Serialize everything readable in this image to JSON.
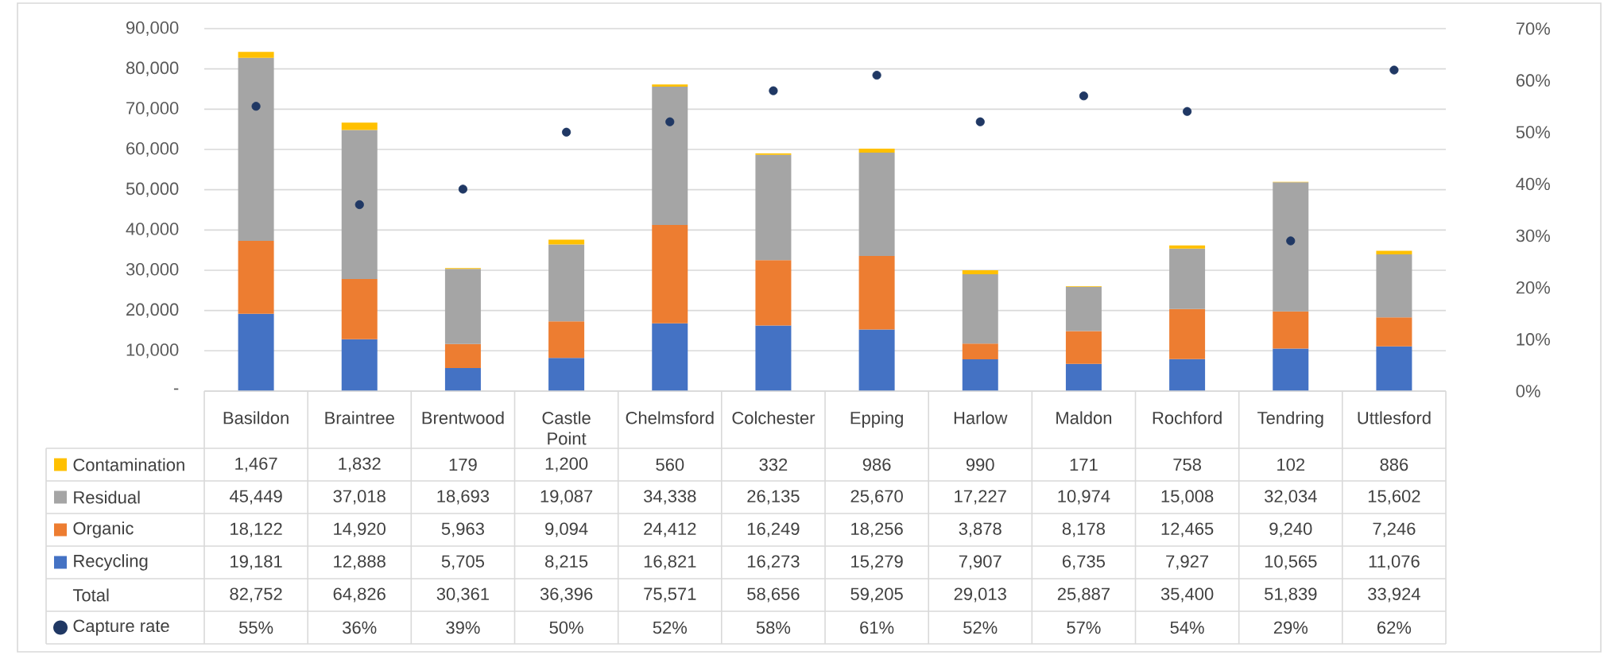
{
  "chart_data": {
    "type": "bar",
    "stacked": true,
    "grid": "y",
    "legend": "bottom",
    "categories": [
      "Basildon",
      "Braintree",
      "Brentwood",
      "Castle Point",
      "Chelmsford",
      "Colchester",
      "Epping",
      "Harlow",
      "Maldon",
      "Rochford",
      "Tendring",
      "Uttlesford"
    ],
    "series": [
      {
        "name": "Recycling",
        "color": "#4472c4",
        "values": [
          19181,
          12888,
          5705,
          8215,
          16821,
          16273,
          15279,
          7907,
          6735,
          7927,
          10565,
          11076
        ],
        "value_labels": [
          "19,181",
          "12,888",
          "5,705",
          "8,215",
          "16,821",
          "16,273",
          "15,279",
          "7,907",
          "6,735",
          "7,927",
          "10,565",
          "11,076"
        ]
      },
      {
        "name": "Organic",
        "color": "#ed7d31",
        "values": [
          18122,
          14920,
          5963,
          9094,
          24412,
          16249,
          18256,
          3878,
          8178,
          12465,
          9240,
          7246
        ],
        "value_labels": [
          "18,122",
          "14,920",
          "5,963",
          "9,094",
          "24,412",
          "16,249",
          "18,256",
          "3,878",
          "8,178",
          "12,465",
          "9,240",
          "7,246"
        ]
      },
      {
        "name": "Residual",
        "color": "#a5a5a5",
        "values": [
          45449,
          37018,
          18693,
          19087,
          34338,
          26135,
          25670,
          17227,
          10974,
          15008,
          32034,
          15602
        ],
        "value_labels": [
          "45,449",
          "37,018",
          "18,693",
          "19,087",
          "34,338",
          "26,135",
          "25,670",
          "17,227",
          "10,974",
          "15,008",
          "32,034",
          "15,602"
        ]
      },
      {
        "name": "Contamination",
        "color": "#ffc000",
        "values": [
          1467,
          1832,
          179,
          1200,
          560,
          332,
          986,
          990,
          171,
          758,
          102,
          886
        ],
        "value_labels": [
          "1,467",
          "1,832",
          "179",
          "1,200",
          "560",
          "332",
          "986",
          "990",
          "171",
          "758",
          "102",
          "886"
        ]
      },
      {
        "name": "Capture rate",
        "type": "scatter",
        "axis": "y2",
        "marker": "circle",
        "color": "#203864",
        "values": [
          55,
          36,
          39,
          50,
          52,
          58,
          61,
          52,
          57,
          54,
          29,
          62
        ],
        "value_labels": [
          "55%",
          "36%",
          "39%",
          "50%",
          "52%",
          "58%",
          "61%",
          "52%",
          "57%",
          "54%",
          "29%",
          "62%"
        ]
      }
    ],
    "annotations": [
      "Total",
      "82,752",
      "64,826",
      "30,361",
      "36,396",
      "75,571",
      "58,656",
      "59,205",
      "29,013",
      "25,887",
      "35,400",
      "51,839",
      "33,924"
    ],
    "ylim": [
      0,
      90000
    ],
    "yticks": [
      {
        "value": 0,
        "label": "-"
      },
      {
        "value": 10000,
        "label": "10,000"
      },
      {
        "value": 20000,
        "label": "20,000"
      },
      {
        "value": 30000,
        "label": "30,000"
      },
      {
        "value": 40000,
        "label": "40,000"
      },
      {
        "value": 50000,
        "label": "50,000"
      },
      {
        "value": 60000,
        "label": "60,000"
      },
      {
        "value": 70000,
        "label": "70,000"
      },
      {
        "value": 80000,
        "label": "80,000"
      },
      {
        "value": 90000,
        "label": "90,000"
      }
    ],
    "y2lim": [
      0,
      70
    ],
    "y2ticks": [
      {
        "value": 0,
        "label": "0%"
      },
      {
        "value": 10,
        "label": "10%"
      },
      {
        "value": 20,
        "label": "20%"
      },
      {
        "value": 30,
        "label": "30%"
      },
      {
        "value": 40,
        "label": "40%"
      },
      {
        "value": 50,
        "label": "50%"
      },
      {
        "value": 60,
        "label": "60%"
      },
      {
        "value": 70,
        "label": "70%"
      }
    ]
  }
}
